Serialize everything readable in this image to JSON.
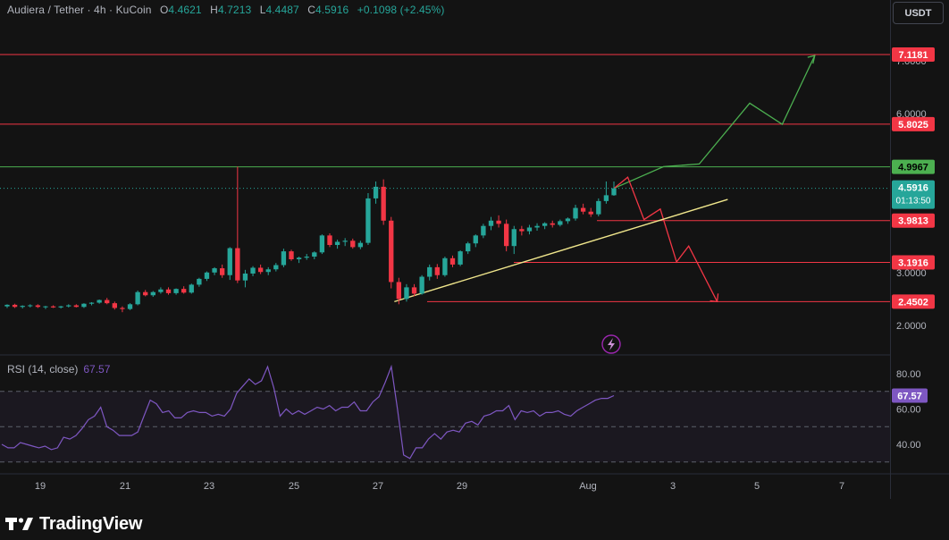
{
  "header": {
    "symbol": "Audiera / Tether · 4h · KuCoin",
    "open_label": "O",
    "open": "4.4621",
    "high_label": "H",
    "high": "4.7213",
    "low_label": "L",
    "low": "4.4487",
    "close_label": "C",
    "close": "4.5916",
    "change": "+0.1098 (+2.45%)"
  },
  "currency_button": "USDT",
  "rsi": {
    "title": "RSI (14, close)",
    "value": "67.57"
  },
  "colors": {
    "bull": "#26a69a",
    "bear": "#f23645",
    "level_red": "#f23645",
    "level_green": "#4caf50",
    "trendline": "#f0e68c",
    "rsi_line": "#7e57c2",
    "background": "#131313"
  },
  "brand": {
    "name": "TradingView",
    "icon": "tradingview-logo-icon"
  },
  "chart_data": {
    "type": "candlestick",
    "price_axis": {
      "ticks": [
        "7.0000",
        "6.0000",
        "5.0000",
        "4.0000",
        "3.0000",
        "2.0000"
      ],
      "tick_values": [
        7,
        6,
        5,
        4,
        3,
        2
      ]
    },
    "time_axis": {
      "labels": [
        "19",
        "21",
        "23",
        "25",
        "27",
        "29",
        "Aug",
        "3",
        "5",
        "7"
      ]
    },
    "levels": [
      {
        "value": 7.1181,
        "label": "7.1181",
        "color": "red"
      },
      {
        "value": 5.8025,
        "label": "5.8025",
        "color": "red"
      },
      {
        "value": 4.9967,
        "label": "4.9967",
        "color": "green"
      },
      {
        "value": 3.9813,
        "label": "3.9813",
        "color": "red"
      },
      {
        "value": 3.1916,
        "label": "3.1916",
        "color": "red"
      },
      {
        "value": 2.4502,
        "label": "2.4502",
        "color": "red"
      }
    ],
    "last_price": {
      "value": 4.5916,
      "label": "4.5916",
      "countdown": "01:13:50"
    },
    "candles": [
      [
        2.36,
        2.4,
        2.33,
        2.39
      ],
      [
        2.39,
        2.41,
        2.33,
        2.35
      ],
      [
        2.35,
        2.38,
        2.32,
        2.37
      ],
      [
        2.37,
        2.4,
        2.34,
        2.38
      ],
      [
        2.38,
        2.4,
        2.33,
        2.35
      ],
      [
        2.35,
        2.37,
        2.31,
        2.36
      ],
      [
        2.36,
        2.38,
        2.33,
        2.34
      ],
      [
        2.34,
        2.37,
        2.32,
        2.36
      ],
      [
        2.36,
        2.4,
        2.34,
        2.38
      ],
      [
        2.38,
        2.4,
        2.34,
        2.35
      ],
      [
        2.35,
        2.42,
        2.33,
        2.41
      ],
      [
        2.41,
        2.44,
        2.38,
        2.43
      ],
      [
        2.43,
        2.49,
        2.41,
        2.48
      ],
      [
        2.48,
        2.52,
        2.4,
        2.42
      ],
      [
        2.42,
        2.45,
        2.3,
        2.33
      ],
      [
        2.33,
        2.36,
        2.25,
        2.31
      ],
      [
        2.31,
        2.42,
        2.29,
        2.4
      ],
      [
        2.4,
        2.66,
        2.38,
        2.63
      ],
      [
        2.63,
        2.67,
        2.55,
        2.57
      ],
      [
        2.57,
        2.65,
        2.54,
        2.63
      ],
      [
        2.63,
        2.72,
        2.6,
        2.68
      ],
      [
        2.68,
        2.72,
        2.58,
        2.61
      ],
      [
        2.61,
        2.7,
        2.58,
        2.69
      ],
      [
        2.69,
        2.74,
        2.6,
        2.62
      ],
      [
        2.62,
        2.79,
        2.6,
        2.77
      ],
      [
        2.77,
        2.9,
        2.73,
        2.88
      ],
      [
        2.88,
        3.02,
        2.84,
        3.0
      ],
      [
        3.0,
        3.1,
        2.95,
        3.08
      ],
      [
        3.08,
        3.15,
        2.9,
        2.95
      ],
      [
        2.95,
        3.48,
        2.86,
        3.46
      ],
      [
        3.46,
        5.0,
        2.8,
        2.85
      ],
      [
        2.85,
        3.05,
        2.72,
        2.98
      ],
      [
        2.98,
        3.12,
        2.93,
        3.09
      ],
      [
        3.09,
        3.15,
        2.97,
        3.01
      ],
      [
        3.01,
        3.1,
        2.95,
        3.06
      ],
      [
        3.06,
        3.18,
        3.02,
        3.14
      ],
      [
        3.14,
        3.45,
        3.1,
        3.4
      ],
      [
        3.4,
        3.43,
        3.22,
        3.25
      ],
      [
        3.25,
        3.3,
        3.18,
        3.28
      ],
      [
        3.28,
        3.35,
        3.24,
        3.3
      ],
      [
        3.3,
        3.4,
        3.25,
        3.38
      ],
      [
        3.38,
        3.72,
        3.35,
        3.7
      ],
      [
        3.7,
        3.74,
        3.48,
        3.52
      ],
      [
        3.52,
        3.62,
        3.45,
        3.58
      ],
      [
        3.58,
        3.65,
        3.5,
        3.6
      ],
      [
        3.6,
        3.64,
        3.45,
        3.48
      ],
      [
        3.48,
        3.6,
        3.44,
        3.56
      ],
      [
        3.56,
        4.5,
        3.52,
        4.4
      ],
      [
        4.4,
        4.72,
        4.3,
        4.62
      ],
      [
        4.62,
        4.76,
        3.9,
        3.98
      ],
      [
        3.98,
        4.05,
        2.7,
        2.82
      ],
      [
        2.82,
        2.9,
        2.4,
        2.5
      ],
      [
        2.5,
        2.78,
        2.45,
        2.72
      ],
      [
        2.72,
        2.78,
        2.55,
        2.6
      ],
      [
        2.6,
        2.95,
        2.58,
        2.92
      ],
      [
        2.92,
        3.15,
        2.85,
        3.1
      ],
      [
        3.1,
        3.16,
        2.88,
        2.95
      ],
      [
        2.95,
        3.3,
        2.92,
        3.27
      ],
      [
        3.27,
        3.32,
        3.1,
        3.15
      ],
      [
        3.15,
        3.42,
        3.12,
        3.4
      ],
      [
        3.4,
        3.58,
        3.35,
        3.55
      ],
      [
        3.55,
        3.72,
        3.48,
        3.7
      ],
      [
        3.7,
        3.92,
        3.65,
        3.88
      ],
      [
        3.88,
        4.05,
        3.8,
        3.98
      ],
      [
        3.98,
        4.08,
        3.85,
        3.92
      ],
      [
        3.92,
        4.0,
        3.4,
        3.5
      ],
      [
        3.5,
        3.88,
        3.35,
        3.82
      ],
      [
        3.82,
        3.88,
        3.7,
        3.78
      ],
      [
        3.78,
        3.9,
        3.72,
        3.85
      ],
      [
        3.85,
        3.93,
        3.79,
        3.88
      ],
      [
        3.88,
        3.95,
        3.82,
        3.93
      ],
      [
        3.93,
        3.98,
        3.85,
        3.9
      ],
      [
        3.9,
        4.0,
        3.87,
        3.97
      ],
      [
        3.97,
        4.04,
        3.92,
        4.02
      ],
      [
        4.02,
        4.28,
        3.98,
        4.22
      ],
      [
        4.22,
        4.3,
        4.1,
        4.15
      ],
      [
        4.15,
        4.22,
        4.05,
        4.1
      ],
      [
        4.1,
        4.4,
        4.06,
        4.35
      ],
      [
        4.35,
        4.72,
        4.3,
        4.46
      ],
      [
        4.46,
        4.72,
        4.45,
        4.59
      ]
    ],
    "rsi": {
      "levels": [
        70,
        50,
        30
      ],
      "ticks": [
        "80.00",
        "60.00",
        "40.00"
      ],
      "tick_values": [
        80,
        60,
        40
      ],
      "values": [
        40,
        38,
        38,
        41,
        40,
        39,
        38,
        39,
        37,
        38,
        44,
        43,
        45,
        49,
        54,
        56,
        61,
        50,
        48,
        45,
        45,
        45,
        47,
        56,
        65,
        63,
        58,
        59,
        55,
        55,
        58,
        59,
        58,
        58,
        56,
        57,
        56,
        60,
        69,
        73,
        77,
        74,
        76,
        84,
        72,
        56,
        60,
        57,
        59,
        57,
        59,
        61,
        60,
        62,
        59,
        61,
        61,
        64,
        59,
        59,
        64,
        67,
        75,
        84,
        60,
        34,
        32,
        38,
        38,
        43,
        46,
        43,
        47,
        48,
        47,
        52,
        53,
        51,
        56,
        57,
        59,
        59,
        62,
        54,
        59,
        58,
        59,
        56,
        58,
        58,
        59,
        57,
        56,
        59,
        61,
        63,
        65,
        66,
        66,
        67.57
      ]
    },
    "projections": {
      "bull_path": [
        [
          4.59,
          4.33
        ],
        [
          5.0,
          4.94
        ],
        [
          5.05,
          5.38
        ],
        [
          6.2,
          6.0
        ],
        [
          5.8,
          6.4
        ],
        [
          7.1,
          6.8
        ]
      ],
      "bear_path": [
        [
          4.59,
          4.33
        ],
        [
          4.8,
          4.5
        ],
        [
          4.0,
          4.7
        ],
        [
          4.2,
          4.9
        ],
        [
          3.2,
          5.1
        ],
        [
          3.5,
          5.25
        ],
        [
          2.45,
          5.6
        ]
      ]
    }
  }
}
